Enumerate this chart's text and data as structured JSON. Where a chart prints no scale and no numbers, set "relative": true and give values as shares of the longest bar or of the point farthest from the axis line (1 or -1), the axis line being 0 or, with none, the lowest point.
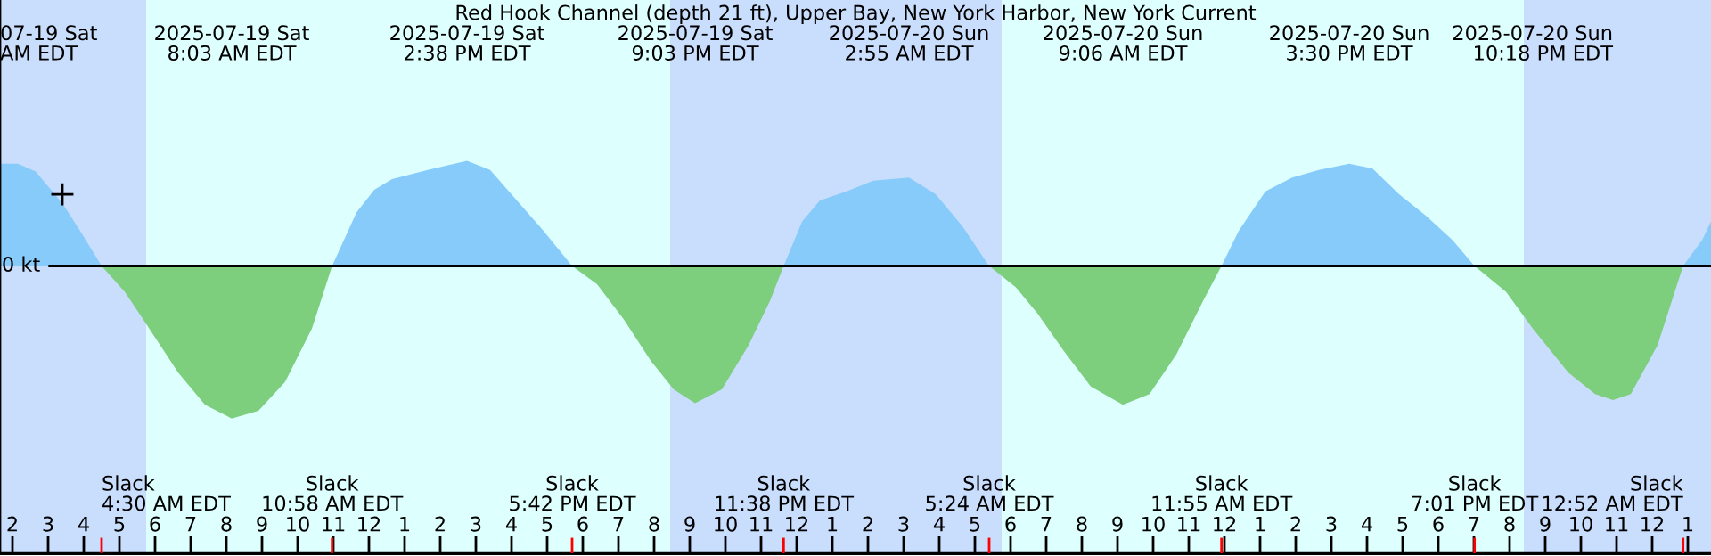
{
  "chart_data": {
    "type": "area",
    "title": "Red Hook Channel (depth 21 ft), Upper Bay, New York Harbor, New York Current",
    "relative": true,
    "x": [
      "2025-07-19T01:39",
      "2025-07-19T02:09",
      "2025-07-19T02:39",
      "2025-07-19T03:24",
      "2025-07-19T03:54",
      "2025-07-19T04:30",
      "2025-07-19T05:09",
      "2025-07-19T05:45",
      "2025-07-19T06:39",
      "2025-07-19T07:24",
      "2025-07-19T08:09",
      "2025-07-19T08:54",
      "2025-07-19T09:39",
      "2025-07-19T10:24",
      "2025-07-19T10:58",
      "2025-07-19T11:39",
      "2025-07-19T12:09",
      "2025-07-19T12:39",
      "2025-07-19T13:39",
      "2025-07-19T14:45",
      "2025-07-19T15:24",
      "2025-07-19T16:09",
      "2025-07-19T16:54",
      "2025-07-19T17:42",
      "2025-07-19T18:24",
      "2025-07-19T19:09",
      "2025-07-19T19:54",
      "2025-07-19T20:33",
      "2025-07-19T21:09",
      "2025-07-19T21:54",
      "2025-07-19T22:39",
      "2025-07-19T23:15",
      "2025-07-19T23:38",
      "2025-07-20T00:09",
      "2025-07-20T00:39",
      "2025-07-20T01:24",
      "2025-07-20T02:09",
      "2025-07-20T03:09",
      "2025-07-20T03:54",
      "2025-07-20T04:39",
      "2025-07-20T05:24",
      "2025-07-20T06:09",
      "2025-07-20T06:45",
      "2025-07-20T07:30",
      "2025-07-20T08:15",
      "2025-07-20T09:09",
      "2025-07-20T09:54",
      "2025-07-20T10:39",
      "2025-07-20T11:24",
      "2025-07-20T11:55",
      "2025-07-20T12:24",
      "2025-07-20T13:09",
      "2025-07-20T13:54",
      "2025-07-20T14:39",
      "2025-07-20T15:30",
      "2025-07-20T16:09",
      "2025-07-20T16:54",
      "2025-07-20T17:39",
      "2025-07-20T18:24",
      "2025-07-20T19:01",
      "2025-07-20T19:54",
      "2025-07-20T20:39",
      "2025-07-20T21:39",
      "2025-07-20T22:24",
      "2025-07-20T22:54",
      "2025-07-20T23:24",
      "2025-07-21T00:09",
      "2025-07-21T00:52",
      "2025-07-21T01:24",
      "2025-07-21T01:39"
    ],
    "series": [
      {
        "color": "#87cbfa",
        "values": [
          0.67,
          0.67,
          0.62,
          0.41,
          0.23,
          0,
          null,
          null,
          null,
          null,
          null,
          null,
          null,
          null,
          0,
          0.35,
          0.5,
          0.57,
          0.63,
          0.69,
          0.63,
          0.43,
          0.23,
          0,
          null,
          null,
          null,
          null,
          null,
          null,
          null,
          null,
          0,
          0.29,
          0.43,
          0.49,
          0.56,
          0.58,
          0.47,
          0.26,
          0,
          null,
          null,
          null,
          null,
          null,
          null,
          null,
          null,
          0,
          0.23,
          0.49,
          0.58,
          0.63,
          0.67,
          0.64,
          0.47,
          0.33,
          0.17,
          0,
          null,
          null,
          null,
          null,
          null,
          null,
          null,
          0,
          0.17,
          0.29
        ]
      },
      {
        "color": "#7dce7d",
        "values": [
          null,
          null,
          null,
          null,
          null,
          0,
          -0.17,
          -0.38,
          -0.7,
          -0.91,
          -1,
          -0.95,
          -0.76,
          -0.41,
          0,
          null,
          null,
          null,
          null,
          null,
          null,
          null,
          null,
          0,
          -0.12,
          -0.35,
          -0.62,
          -0.81,
          -0.9,
          -0.81,
          -0.52,
          -0.23,
          0,
          null,
          null,
          null,
          null,
          null,
          null,
          null,
          0,
          -0.14,
          -0.31,
          -0.56,
          -0.79,
          -0.91,
          -0.84,
          -0.58,
          -0.23,
          0,
          null,
          null,
          null,
          null,
          null,
          null,
          null,
          null,
          null,
          0,
          -0.17,
          -0.41,
          -0.7,
          -0.84,
          -0.88,
          -0.84,
          -0.52,
          0,
          null,
          null
        ]
      },
      {
        "type": "scatter",
        "color": "#000000",
        "marker": "cross",
        "x": [
          "2025-07-19T03:24"
        ],
        "values": [
          0.47
        ]
      }
    ],
    "xlim": [
      "2025-07-19T01:39",
      "2025-07-21T01:39"
    ],
    "xticks": [
      {
        "value": "2025-07-19T02:00",
        "label": "2"
      },
      {
        "value": "2025-07-19T03:00",
        "label": "3"
      },
      {
        "value": "2025-07-19T04:00",
        "label": "4"
      },
      {
        "value": "2025-07-19T05:00",
        "label": "5"
      },
      {
        "value": "2025-07-19T06:00",
        "label": "6"
      },
      {
        "value": "2025-07-19T07:00",
        "label": "7"
      },
      {
        "value": "2025-07-19T08:00",
        "label": "8"
      },
      {
        "value": "2025-07-19T09:00",
        "label": "9"
      },
      {
        "value": "2025-07-19T10:00",
        "label": "10"
      },
      {
        "value": "2025-07-19T11:00",
        "label": "11"
      },
      {
        "value": "2025-07-19T12:00",
        "label": "12"
      },
      {
        "value": "2025-07-19T13:00",
        "label": "1"
      },
      {
        "value": "2025-07-19T14:00",
        "label": "2"
      },
      {
        "value": "2025-07-19T15:00",
        "label": "3"
      },
      {
        "value": "2025-07-19T16:00",
        "label": "4"
      },
      {
        "value": "2025-07-19T17:00",
        "label": "5"
      },
      {
        "value": "2025-07-19T18:00",
        "label": "6"
      },
      {
        "value": "2025-07-19T19:00",
        "label": "7"
      },
      {
        "value": "2025-07-19T20:00",
        "label": "8"
      },
      {
        "value": "2025-07-19T21:00",
        "label": "9"
      },
      {
        "value": "2025-07-19T22:00",
        "label": "10"
      },
      {
        "value": "2025-07-19T23:00",
        "label": "11"
      },
      {
        "value": "2025-07-20T00:00",
        "label": "12"
      },
      {
        "value": "2025-07-20T01:00",
        "label": "1"
      },
      {
        "value": "2025-07-20T02:00",
        "label": "2"
      },
      {
        "value": "2025-07-20T03:00",
        "label": "3"
      },
      {
        "value": "2025-07-20T04:00",
        "label": "4"
      },
      {
        "value": "2025-07-20T05:00",
        "label": "5"
      },
      {
        "value": "2025-07-20T06:00",
        "label": "6"
      },
      {
        "value": "2025-07-20T07:00",
        "label": "7"
      },
      {
        "value": "2025-07-20T08:00",
        "label": "8"
      },
      {
        "value": "2025-07-20T09:00",
        "label": "9"
      },
      {
        "value": "2025-07-20T10:00",
        "label": "10"
      },
      {
        "value": "2025-07-20T11:00",
        "label": "11"
      },
      {
        "value": "2025-07-20T12:00",
        "label": "12"
      },
      {
        "value": "2025-07-20T13:00",
        "label": "1"
      },
      {
        "value": "2025-07-20T14:00",
        "label": "2"
      },
      {
        "value": "2025-07-20T15:00",
        "label": "3"
      },
      {
        "value": "2025-07-20T16:00",
        "label": "4"
      },
      {
        "value": "2025-07-20T17:00",
        "label": "5"
      },
      {
        "value": "2025-07-20T18:00",
        "label": "6"
      },
      {
        "value": "2025-07-20T19:00",
        "label": "7"
      },
      {
        "value": "2025-07-20T20:00",
        "label": "8"
      },
      {
        "value": "2025-07-20T21:00",
        "label": "9"
      },
      {
        "value": "2025-07-20T22:00",
        "label": "10"
      },
      {
        "value": "2025-07-20T23:00",
        "label": "11"
      },
      {
        "value": "2025-07-21T00:00",
        "label": "12"
      },
      {
        "value": "2025-07-21T01:00",
        "label": "1"
      }
    ],
    "bands": [
      {
        "axis": "x",
        "from": "2025-07-19T01:39",
        "to": "2025-07-19T05:45",
        "color": "#c9ddfc"
      },
      {
        "axis": "x",
        "from": "2025-07-19T05:45",
        "to": "2025-07-19T20:27",
        "color": "#ddfffe"
      },
      {
        "axis": "x",
        "from": "2025-07-19T20:27",
        "to": "2025-07-20T05:45",
        "color": "#c9ddfc"
      },
      {
        "axis": "x",
        "from": "2025-07-20T05:45",
        "to": "2025-07-20T20:24",
        "color": "#ddfffe"
      },
      {
        "axis": "x",
        "from": "2025-07-20T20:24",
        "to": "2025-07-21T01:39",
        "color": "#c9ddfc"
      }
    ],
    "ref_lines": [
      {
        "axis": "y",
        "value": 0,
        "label": "0 kt",
        "color": "#000000"
      }
    ],
    "annotations": [
      "07-19 Sat\nAM EDT",
      "2025-07-19 Sat\n8:03 AM EDT",
      "2025-07-19 Sat\n2:38 PM EDT",
      "2025-07-19 Sat\n9:03 PM EDT",
      "2025-07-20 Sun\n2:55 AM EDT",
      "2025-07-20 Sun\n9:06 AM EDT",
      "2025-07-20 Sun\n3:30 PM EDT",
      "2025-07-20 Sun\n10:18 PM EDT",
      "Slack\n4:30 AM EDT",
      "Slack\n10:58 AM EDT",
      "Slack\n5:42 PM EDT",
      "Slack\n11:38 PM EDT",
      "Slack\n5:24 AM EDT",
      "Slack\n11:55 AM EDT",
      "Slack\n7:01 PM EDT",
      "Slack\n12:52 AM EDT"
    ],
    "grid": false
  }
}
